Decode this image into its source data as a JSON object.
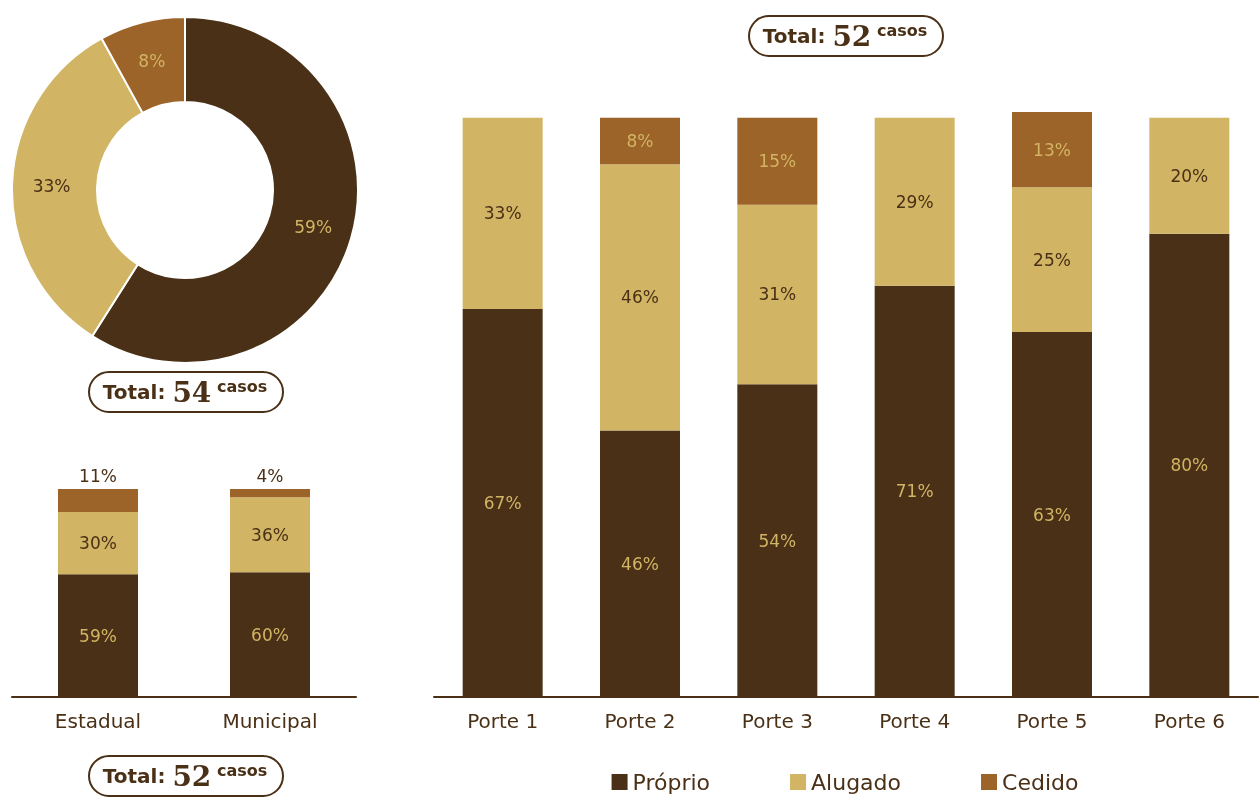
{
  "chart_data": [
    {
      "type": "donut",
      "title": "Total: 54 casos",
      "categories": [
        null,
        null,
        null
      ],
      "values": [
        59,
        33,
        8
      ],
      "value_labels": [
        "59%",
        "33%",
        "8%"
      ],
      "colors": [
        "#4a3016",
        "#d1b464",
        "#9c6428"
      ],
      "legend": false
    },
    {
      "type": "bar",
      "title": "Total: 52 casos",
      "stacked": true,
      "legend": false,
      "categories": [
        "Estadual",
        "Municipal"
      ],
      "series": [
        {
          "color": "#4a3016",
          "values": [
            59,
            60
          ],
          "value_labels": [
            "59%",
            "60%"
          ]
        },
        {
          "color": "#d1b464",
          "values": [
            30,
            36
          ],
          "value_labels": [
            "30%",
            "36%"
          ]
        },
        {
          "color": "#9c6428",
          "values": [
            11,
            4
          ],
          "value_labels": [
            "11%",
            "4%"
          ]
        }
      ]
    },
    {
      "type": "bar",
      "title": "Total: 52 casos",
      "stacked": true,
      "legend": "bottom",
      "categories": [
        "Porte 1",
        "Porte 2",
        "Porte 3",
        "Porte 4",
        "Porte 5",
        "Porte 6"
      ],
      "series": [
        {
          "name": "Próprio",
          "color": "#4a3016",
          "values": [
            67,
            46,
            54,
            71,
            63,
            80
          ],
          "value_labels": [
            "67%",
            "46%",
            "54%",
            "71%",
            "63%",
            "80%"
          ]
        },
        {
          "name": "Alugado",
          "color": "#d1b464",
          "values": [
            33,
            46,
            31,
            29,
            25,
            20
          ],
          "value_labels": [
            "33%",
            "46%",
            "31%",
            "29%",
            "25%",
            "20%"
          ]
        },
        {
          "name": "Cedido",
          "color": "#9c6428",
          "values": [
            null,
            8,
            15,
            null,
            13,
            null
          ],
          "value_labels": [
            null,
            "8%",
            "15%",
            null,
            "13%",
            null
          ]
        }
      ]
    }
  ]
}
